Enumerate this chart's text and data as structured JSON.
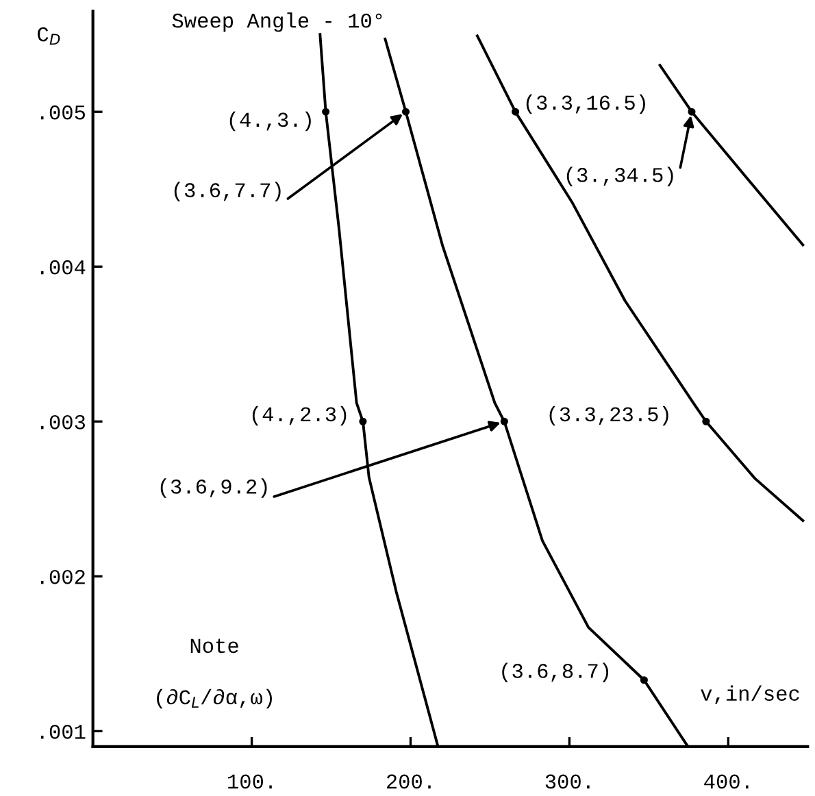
{
  "chart_data": {
    "type": "line",
    "title": "Sweep Angle - 10°",
    "xlabel": "v,in/sec",
    "ylabel": "C$_{D}$",
    "xlim": [
      0,
      450
    ],
    "ylim": [
      0.0009,
      0.00565
    ],
    "xticks": [
      {
        "value": 100,
        "label": "100."
      },
      {
        "value": 200,
        "label": "200."
      },
      {
        "value": 300,
        "label": "300."
      },
      {
        "value": 400,
        "label": "400."
      }
    ],
    "yticks": [
      {
        "value": 0.001,
        "label": ".001"
      },
      {
        "value": 0.002,
        "label": ".002"
      },
      {
        "value": 0.003,
        "label": ".003"
      },
      {
        "value": 0.004,
        "label": ".004"
      },
      {
        "value": 0.005,
        "label": ".005"
      }
    ],
    "grid": false,
    "legend": false,
    "marker": "none",
    "line_style": "solid",
    "series": [
      {
        "color": "#000000",
        "x": [
          143,
          146.6,
          155,
          166,
          170,
          173.8,
          191,
          217
        ],
        "values": [
          0.0055,
          0.005,
          0.00424,
          0.00312,
          0.003,
          0.00264,
          0.0019,
          0.00091
        ]
      },
      {
        "color": "#000000",
        "x": [
          184,
          197,
          220,
          253,
          259,
          283,
          312,
          347,
          374
        ],
        "values": [
          0.00547,
          0.005,
          0.00414,
          0.00312,
          0.003,
          0.00223,
          0.00167,
          0.00133,
          0.00091
        ]
      },
      {
        "color": "#000000",
        "x": [
          242,
          266,
          302,
          335,
          378,
          386,
          417,
          447
        ],
        "values": [
          0.00549,
          0.005,
          0.00441,
          0.00378,
          0.00312,
          0.003,
          0.00263,
          0.00236
        ]
      },
      {
        "color": "#000000",
        "x": [
          357,
          377,
          407,
          447
        ],
        "values": [
          0.0053,
          0.005,
          0.00463,
          0.00414
        ]
      }
    ],
    "annotations": [
      {
        "text": "(4.,3.)",
        "x": 146.6,
        "y": 0.005
      },
      {
        "text": "(3.6,7.7)",
        "x": 197,
        "y": 0.005
      },
      {
        "text": "(3.3,16.5)",
        "x": 266,
        "y": 0.005
      },
      {
        "text": "(3.,34.5)",
        "x": 377,
        "y": 0.005
      },
      {
        "text": "(4.,2.3)",
        "x": 170,
        "y": 0.003
      },
      {
        "text": "(3.6,9.2)",
        "x": 259,
        "y": 0.003
      },
      {
        "text": "(3.3,23.5)",
        "x": 386,
        "y": 0.003
      },
      {
        "text": "(3.6,8.7)",
        "x": 347,
        "y": 0.00133
      },
      "Note",
      "(∂C$_{L}$/∂α,ω)"
    ]
  }
}
